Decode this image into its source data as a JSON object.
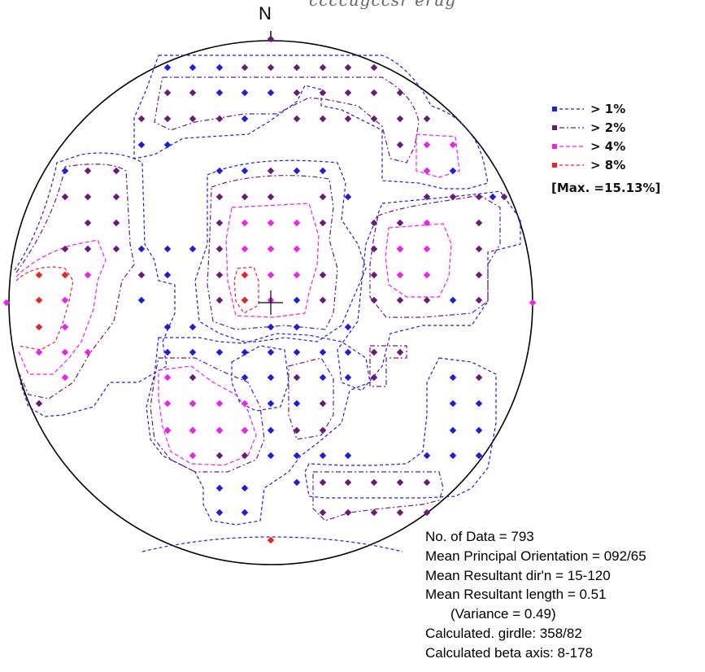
{
  "north_label": "N",
  "top_text": "ccccugccsr  erug",
  "legend": {
    "items": [
      {
        "label": "> 1%",
        "color": "#1c1ce6"
      },
      {
        "label": "> 2%",
        "color": "#6b1a7a"
      },
      {
        "label": "> 4%",
        "color": "#f01ef0"
      },
      {
        "label": "> 8%",
        "color": "#ee2222"
      }
    ],
    "max": "[Max. =15.13%]"
  },
  "stats": {
    "n_data": "No. of Data = 793",
    "mean_orientation": "Mean Principal Orientation = 092/65",
    "mean_resultant_dir": "Mean Resultant dir'n = 15-120",
    "mean_resultant_len": "Mean Resultant length = 0.51",
    "variance": "(Variance = 0.49)",
    "girdle": "Calculated. girdle: 358/82",
    "beta": "Calculated beta axis: 8-178"
  },
  "points": {
    "blue": [
      [
        206,
        83
      ],
      [
        237,
        83
      ],
      [
        270,
        83
      ],
      [
        270,
        114
      ],
      [
        301,
        114
      ],
      [
        333,
        114
      ],
      [
        301,
        146
      ],
      [
        174,
        178
      ],
      [
        206,
        178
      ],
      [
        365,
        210
      ],
      [
        428,
        242
      ],
      [
        174,
        306
      ],
      [
        206,
        338
      ],
      [
        174,
        369
      ],
      [
        206,
        402
      ],
      [
        237,
        402
      ],
      [
        206,
        433
      ],
      [
        237,
        433
      ],
      [
        270,
        433
      ],
      [
        301,
        433
      ],
      [
        301,
        464
      ],
      [
        333,
        402
      ],
      [
        365,
        402
      ],
      [
        397,
        433
      ],
      [
        428,
        402
      ],
      [
        428,
        433
      ],
      [
        428,
        464
      ],
      [
        397,
        464
      ],
      [
        365,
        433
      ],
      [
        333,
        433
      ],
      [
        333,
        464
      ],
      [
        333,
        496
      ],
      [
        365,
        496
      ],
      [
        333,
        529
      ],
      [
        333,
        560
      ],
      [
        365,
        560
      ],
      [
        270,
        600
      ],
      [
        301,
        600
      ],
      [
        270,
        630
      ],
      [
        301,
        630
      ],
      [
        80,
        210
      ],
      [
        557,
        210
      ],
      [
        557,
        464
      ],
      [
        557,
        496
      ],
      [
        557,
        529
      ],
      [
        589,
        496
      ],
      [
        589,
        529
      ],
      [
        525,
        560
      ],
      [
        557,
        560
      ],
      [
        589,
        560
      ],
      [
        397,
        560
      ],
      [
        428,
        560
      ],
      [
        365,
        369
      ],
      [
        365,
        593
      ],
      [
        237,
        306
      ],
      [
        206,
        306
      ],
      [
        270,
        210
      ],
      [
        301,
        210
      ],
      [
        397,
        210
      ],
      [
        606,
        242
      ],
      [
        557,
        369
      ]
    ],
    "purple": [
      [
        301,
        83
      ],
      [
        333,
        83
      ],
      [
        365,
        83
      ],
      [
        397,
        83
      ],
      [
        428,
        83
      ],
      [
        460,
        83
      ],
      [
        206,
        114
      ],
      [
        237,
        114
      ],
      [
        365,
        114
      ],
      [
        397,
        114
      ],
      [
        428,
        114
      ],
      [
        460,
        114
      ],
      [
        492,
        114
      ],
      [
        174,
        146
      ],
      [
        206,
        146
      ],
      [
        237,
        146
      ],
      [
        270,
        146
      ],
      [
        365,
        146
      ],
      [
        397,
        146
      ],
      [
        428,
        146
      ],
      [
        460,
        146
      ],
      [
        492,
        146
      ],
      [
        525,
        146
      ],
      [
        492,
        178
      ],
      [
        525,
        210
      ],
      [
        108,
        210
      ],
      [
        143,
        210
      ],
      [
        80,
        242
      ],
      [
        108,
        242
      ],
      [
        143,
        242
      ],
      [
        108,
        274
      ],
      [
        143,
        274
      ],
      [
        80,
        306
      ],
      [
        108,
        306
      ],
      [
        143,
        306
      ],
      [
        174,
        338
      ],
      [
        333,
        210
      ],
      [
        270,
        242
      ],
      [
        301,
        242
      ],
      [
        333,
        242
      ],
      [
        397,
        242
      ],
      [
        270,
        274
      ],
      [
        397,
        274
      ],
      [
        270,
        306
      ],
      [
        270,
        338
      ],
      [
        397,
        338
      ],
      [
        270,
        369
      ],
      [
        397,
        369
      ],
      [
        301,
        369
      ],
      [
        460,
        274
      ],
      [
        460,
        306
      ],
      [
        460,
        338
      ],
      [
        460,
        369
      ],
      [
        492,
        369
      ],
      [
        525,
        369
      ],
      [
        525,
        242
      ],
      [
        557,
        242
      ],
      [
        589,
        242
      ],
      [
        620,
        242
      ],
      [
        589,
        274
      ],
      [
        589,
        306
      ],
      [
        589,
        338
      ],
      [
        589,
        369
      ],
      [
        492,
        274
      ],
      [
        492,
        306
      ],
      [
        237,
        464
      ],
      [
        237,
        496
      ],
      [
        206,
        529
      ],
      [
        237,
        529
      ],
      [
        270,
        529
      ],
      [
        270,
        560
      ],
      [
        301,
        560
      ],
      [
        397,
        496
      ],
      [
        365,
        464
      ],
      [
        397,
        529
      ],
      [
        460,
        433
      ],
      [
        492,
        433
      ],
      [
        460,
        464
      ],
      [
        589,
        464
      ],
      [
        397,
        593
      ],
      [
        428,
        593
      ],
      [
        460,
        593
      ],
      [
        492,
        593
      ],
      [
        525,
        593
      ],
      [
        397,
        630
      ],
      [
        428,
        630
      ],
      [
        460,
        630
      ],
      [
        492,
        630
      ],
      [
        525,
        630
      ],
      [
        333,
        48
      ],
      [
        48,
        496
      ],
      [
        301,
        529
      ],
      [
        365,
        529
      ]
    ],
    "magenta": [
      [
        525,
        178
      ],
      [
        557,
        178
      ],
      [
        525,
        210
      ],
      [
        80,
        338
      ],
      [
        80,
        369
      ],
      [
        80,
        402
      ],
      [
        108,
        338
      ],
      [
        48,
        433
      ],
      [
        80,
        433
      ],
      [
        108,
        433
      ],
      [
        80,
        464
      ],
      [
        301,
        274
      ],
      [
        333,
        274
      ],
      [
        365,
        274
      ],
      [
        301,
        306
      ],
      [
        333,
        306
      ],
      [
        365,
        306
      ],
      [
        333,
        338
      ],
      [
        365,
        338
      ],
      [
        333,
        369
      ],
      [
        301,
        338
      ],
      [
        206,
        464
      ],
      [
        206,
        496
      ],
      [
        237,
        496
      ],
      [
        270,
        496
      ],
      [
        206,
        529
      ],
      [
        237,
        529
      ],
      [
        270,
        529
      ],
      [
        301,
        529
      ],
      [
        237,
        560
      ],
      [
        301,
        496
      ],
      [
        492,
        306
      ],
      [
        525,
        306
      ],
      [
        492,
        338
      ],
      [
        525,
        338
      ],
      [
        525,
        274
      ],
      [
        8,
        372
      ],
      [
        655,
        372
      ]
    ],
    "red": [
      [
        48,
        338
      ],
      [
        48,
        369
      ],
      [
        48,
        402
      ],
      [
        80,
        338
      ],
      [
        301,
        338
      ],
      [
        301,
        369
      ],
      [
        333,
        664
      ]
    ]
  }
}
